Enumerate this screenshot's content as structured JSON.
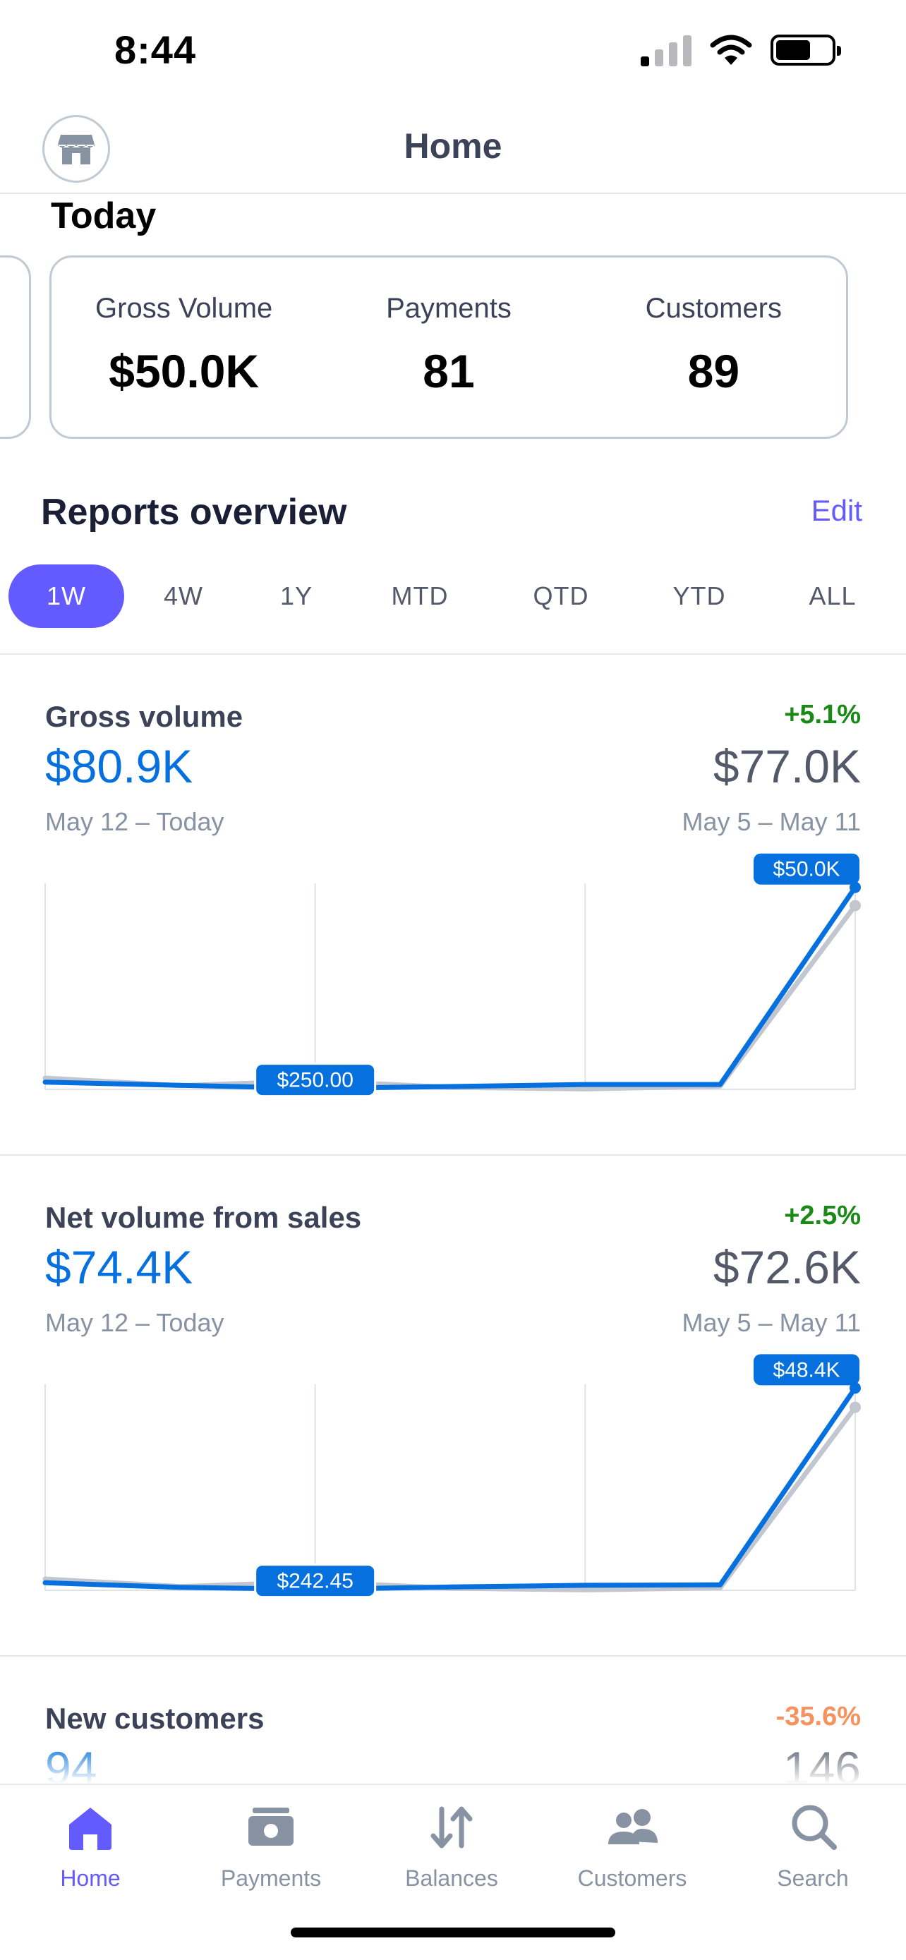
{
  "status_bar": {
    "time": "8:44"
  },
  "header": {
    "title": "Home"
  },
  "today": {
    "title": "Today",
    "stats": [
      {
        "label": "Gross Volume",
        "value": "$50.0K"
      },
      {
        "label": "Payments",
        "value": "81"
      },
      {
        "label": "Customers",
        "value": "89"
      }
    ]
  },
  "reports": {
    "title": "Reports overview",
    "edit_label": "Edit",
    "tabs": [
      "1W",
      "4W",
      "1Y",
      "MTD",
      "QTD",
      "YTD",
      "ALL"
    ],
    "active_tab": "1W"
  },
  "colors": {
    "accent": "#635bff",
    "primary_line": "#0570de",
    "comparison_line": "#c1c6cf",
    "positive": "#1a8917",
    "negative": "#f5925e"
  },
  "metrics": {
    "gross_volume": {
      "label": "Gross volume",
      "change": "+5.1%",
      "value": "$80.9K",
      "previous_value": "$77.0K",
      "range": "May 12 – Today",
      "previous_range": "May 5 – May 11",
      "min_label": "$250.00",
      "max_label": "$50.0K"
    },
    "net_volume": {
      "label": "Net volume from sales",
      "change": "+2.5%",
      "value": "$74.4K",
      "previous_value": "$72.6K",
      "range": "May 12 – Today",
      "previous_range": "May 5 – May 11",
      "min_label": "$242.45",
      "max_label": "$48.4K"
    },
    "new_customers": {
      "label": "New customers",
      "change": "-35.6%",
      "value": "94",
      "previous_value": "146"
    }
  },
  "chart_data": [
    {
      "type": "line",
      "x": [
        1,
        2,
        3,
        4,
        5,
        6,
        7
      ],
      "ylim": [
        0,
        51000
      ],
      "series": [
        {
          "values": [
            1800,
            1000,
            250,
            700,
            1200,
            1200,
            50000
          ]
        },
        {
          "values": [
            2800,
            900,
            2100,
            500,
            100,
            800,
            45500
          ]
        }
      ]
    },
    {
      "type": "line",
      "x": [
        1,
        2,
        3,
        4,
        5,
        6,
        7
      ],
      "ylim": [
        0,
        49300
      ],
      "series": [
        {
          "values": [
            1800,
            700,
            242.45,
            800,
            1200,
            1300,
            48400
          ]
        },
        {
          "values": [
            2700,
            900,
            2000,
            500,
            100,
            600,
            43800
          ]
        }
      ]
    }
  ],
  "bottom_nav": {
    "items": [
      {
        "label": "Home",
        "icon": "home-icon"
      },
      {
        "label": "Payments",
        "icon": "payments-icon"
      },
      {
        "label": "Balances",
        "icon": "balances-icon"
      },
      {
        "label": "Customers",
        "icon": "customers-icon"
      },
      {
        "label": "Search",
        "icon": "search-icon"
      }
    ],
    "active": "Home"
  }
}
